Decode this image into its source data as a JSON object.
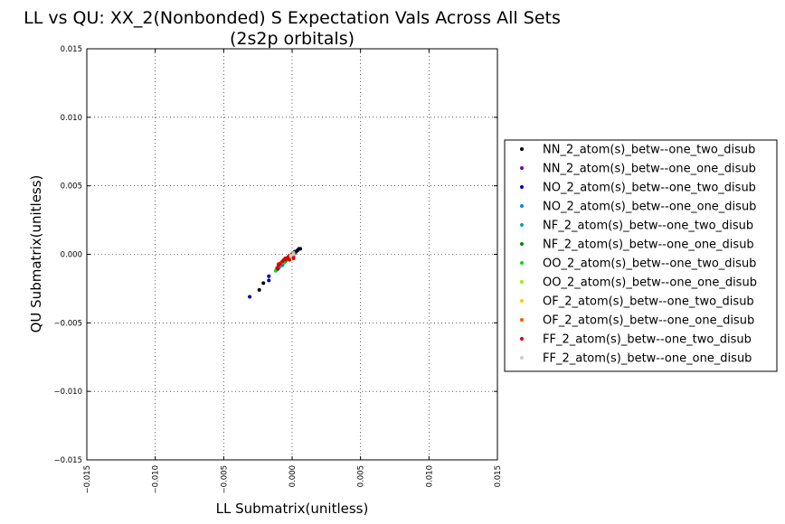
{
  "chart_data": {
    "type": "scatter",
    "title": "LL vs QU: XX_2(Nonbonded) S Expectation Vals Across All Sets",
    "subtitle": "(2s2p orbitals)",
    "xlabel": "LL Submatrix(unitless)",
    "ylabel": "QU Submatrix(unitless)",
    "xlim": [
      -0.015,
      0.015
    ],
    "ylim": [
      -0.015,
      0.015
    ],
    "xticks": [
      -0.015,
      -0.01,
      -0.005,
      0.0,
      0.005,
      0.01,
      0.015
    ],
    "yticks": [
      -0.015,
      -0.01,
      -0.005,
      0.0,
      0.005,
      0.01,
      0.015
    ],
    "xtick_labels": [
      "−0.015",
      "−0.010",
      "−0.005",
      "0.000",
      "0.005",
      "0.010",
      "0.015"
    ],
    "ytick_labels": [
      "−0.015",
      "−0.010",
      "−0.005",
      "0.000",
      "0.005",
      "0.010",
      "0.015"
    ],
    "grid": true,
    "legend_position": "right-outside",
    "series": [
      {
        "name": "NN_2_atom(s)_betw--one_two_disub",
        "color": "#000000",
        "points": [
          [
            -0.0024,
            -0.0026
          ],
          [
            -0.0021,
            -0.0021
          ],
          [
            0.0005,
            0.0004
          ],
          [
            0.0004,
            0.0003
          ],
          [
            0.0003,
            0.0002
          ],
          [
            0.0002,
            0.0001
          ],
          [
            0.0001,
            0.0001
          ],
          [
            0.0006,
            0.0004
          ]
        ]
      },
      {
        "name": "NN_2_atom(s)_betw--one_one_disub",
        "color": "#7f00a0",
        "points": [
          [
            0.0001,
            0.0
          ],
          [
            0.0002,
            0.0001
          ],
          [
            -0.0001,
            -0.0001
          ]
        ]
      },
      {
        "name": "NO_2_atom(s)_betw--one_two_disub",
        "color": "#0000a8",
        "points": [
          [
            -0.0031,
            -0.0031
          ],
          [
            -0.0017,
            -0.0016
          ],
          [
            -0.0017,
            -0.0019
          ],
          [
            -0.0011,
            -0.0011
          ],
          [
            -0.001,
            -0.001
          ],
          [
            -0.0008,
            -0.0008
          ],
          [
            -0.0006,
            -0.0006
          ],
          [
            0.0002,
            0.0002
          ],
          [
            0.0,
            -0.0001
          ]
        ]
      },
      {
        "name": "NO_2_atom(s)_betw--one_one_disub",
        "color": "#0088d8",
        "points": [
          [
            -0.0007,
            -0.0008
          ],
          [
            -0.0004,
            -0.0004
          ],
          [
            0.0001,
            0.0001
          ],
          [
            0.0,
            0.0
          ]
        ]
      },
      {
        "name": "NF_2_atom(s)_betw--one_two_disub",
        "color": "#00aaa0",
        "points": [
          [
            -0.0009,
            -0.0009
          ],
          [
            -0.0003,
            -0.0003
          ],
          [
            0.0,
            -0.0001
          ],
          [
            0.0001,
            0.0
          ]
        ]
      },
      {
        "name": "NF_2_atom(s)_betw--one_one_disub",
        "color": "#008800",
        "points": [
          [
            -0.0005,
            -0.0005
          ],
          [
            -0.0002,
            -0.0002
          ],
          [
            0.0,
            0.0
          ]
        ]
      },
      {
        "name": "OO_2_atom(s)_betw--one_two_disub",
        "color": "#00dd00",
        "points": [
          [
            -0.0012,
            -0.0012
          ],
          [
            -0.0006,
            -0.0006
          ],
          [
            0.0,
            0.0
          ]
        ]
      },
      {
        "name": "OO_2_atom(s)_betw--one_one_disub",
        "color": "#99ee00",
        "points": [
          [
            -0.0002,
            -0.0002
          ],
          [
            0.0001,
            0.0001
          ]
        ]
      },
      {
        "name": "OF_2_atom(s)_betw--one_two_disub",
        "color": "#ffcc00",
        "points": [
          [
            -0.0003,
            -0.0003
          ],
          [
            -0.0001,
            -0.0001
          ]
        ]
      },
      {
        "name": "OF_2_atom(s)_betw--one_one_disub",
        "color": "#ff5500",
        "points": [
          [
            -0.001,
            -0.0007
          ],
          [
            -0.0008,
            -0.0006
          ],
          [
            -0.0003,
            -0.0003
          ]
        ]
      },
      {
        "name": "FF_2_atom(s)_betw--one_two_disub",
        "color": "#dd0000",
        "points": [
          [
            -0.0011,
            -0.001
          ],
          [
            -0.001,
            -0.0008
          ],
          [
            -0.0009,
            -0.0007
          ],
          [
            -0.0007,
            -0.0005
          ],
          [
            -0.0006,
            -0.0004
          ],
          [
            -0.0005,
            -0.0003
          ],
          [
            -0.0004,
            -0.0003
          ],
          [
            -0.0003,
            -0.0002
          ],
          [
            -0.0002,
            -0.0001
          ],
          [
            0.0,
            -0.0001
          ],
          [
            0.0001,
            -0.0002
          ],
          [
            0.0001,
            -0.0003
          ],
          [
            -0.0002,
            -0.0004
          ],
          [
            0.0,
            0.0
          ],
          [
            0.0001,
            -0.0001
          ]
        ]
      },
      {
        "name": "FF_2_atom(s)_betw--one_one_disub",
        "color": "#cccccc",
        "points": [
          [
            -0.0001,
            -0.0001
          ],
          [
            0.0001,
            0.0
          ]
        ]
      }
    ]
  }
}
